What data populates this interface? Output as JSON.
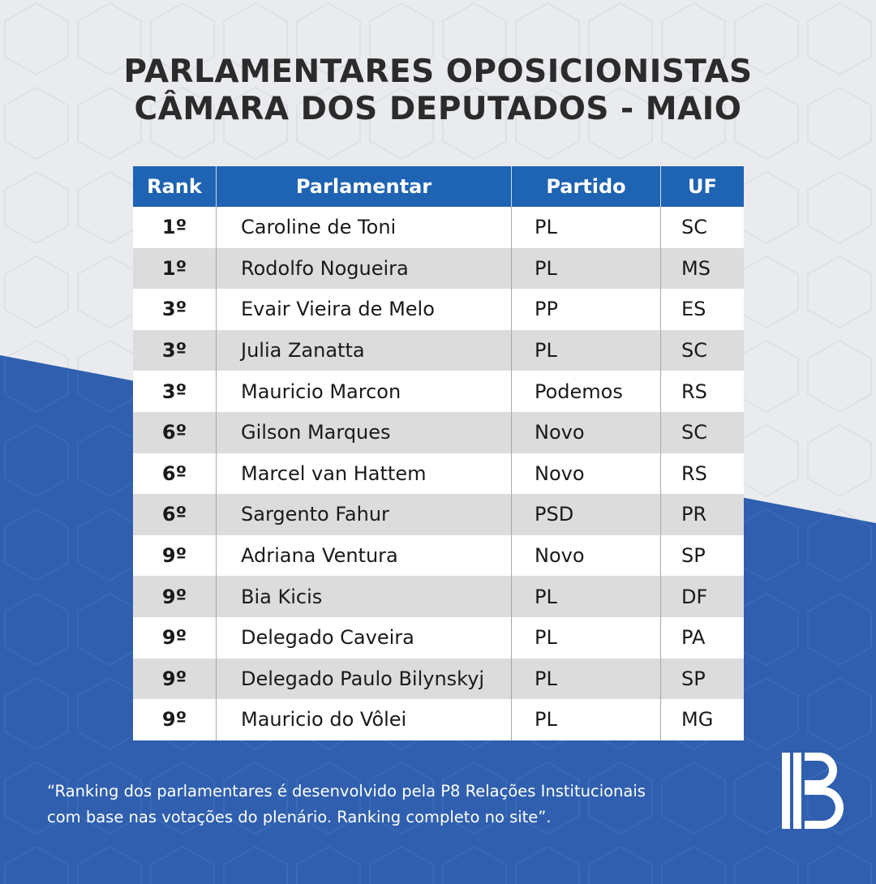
{
  "title": {
    "line1": "PARLAMENTARES OPOSICIONISTAS",
    "line2": "CÂMARA DOS DEPUTADOS - MAIO"
  },
  "table": {
    "headers": {
      "rank": "Rank",
      "name": "Parlamentar",
      "party": "Partido",
      "uf": "UF"
    },
    "rows": [
      {
        "rank": "1º",
        "name": "Caroline de Toni",
        "party": "PL",
        "uf": "SC"
      },
      {
        "rank": "1º",
        "name": "Rodolfo Nogueira",
        "party": "PL",
        "uf": "MS"
      },
      {
        "rank": "3º",
        "name": "Evair Vieira de Melo",
        "party": "PP",
        "uf": "ES"
      },
      {
        "rank": "3º",
        "name": "Julia Zanatta",
        "party": "PL",
        "uf": "SC"
      },
      {
        "rank": "3º",
        "name": "Mauricio Marcon",
        "party": "Podemos",
        "uf": "RS"
      },
      {
        "rank": "6º",
        "name": "Gilson Marques",
        "party": "Novo",
        "uf": "SC"
      },
      {
        "rank": "6º",
        "name": "Marcel van Hattem",
        "party": "Novo",
        "uf": "RS"
      },
      {
        "rank": "6º",
        "name": "Sargento Fahur",
        "party": "PSD",
        "uf": "PR"
      },
      {
        "rank": "9º",
        "name": "Adriana Ventura",
        "party": "Novo",
        "uf": "SP"
      },
      {
        "rank": "9º",
        "name": "Bia Kicis",
        "party": "PL",
        "uf": "DF"
      },
      {
        "rank": "9º",
        "name": "Delegado Caveira",
        "party": "PL",
        "uf": "PA"
      },
      {
        "rank": "9º",
        "name": "Delegado Paulo Bilynskyj",
        "party": "PL",
        "uf": "SP"
      },
      {
        "rank": "9º",
        "name": "Mauricio do Vôlei",
        "party": "PL",
        "uf": "MG"
      }
    ]
  },
  "footnote": {
    "line1": "“Ranking dos parlamentares é desenvolvido pela P8 Relações Institucionais",
    "line2": "com base nas votações do plenário. Ranking completo no site”."
  },
  "logo": {
    "icon": "ib-logo-icon"
  },
  "colors": {
    "header_blue": "#1f63b3",
    "background_blue": "#2f5fae",
    "background_light": "#e9ebee",
    "row_alt": "#dcdcdc",
    "title_text": "#2b2b2b"
  }
}
